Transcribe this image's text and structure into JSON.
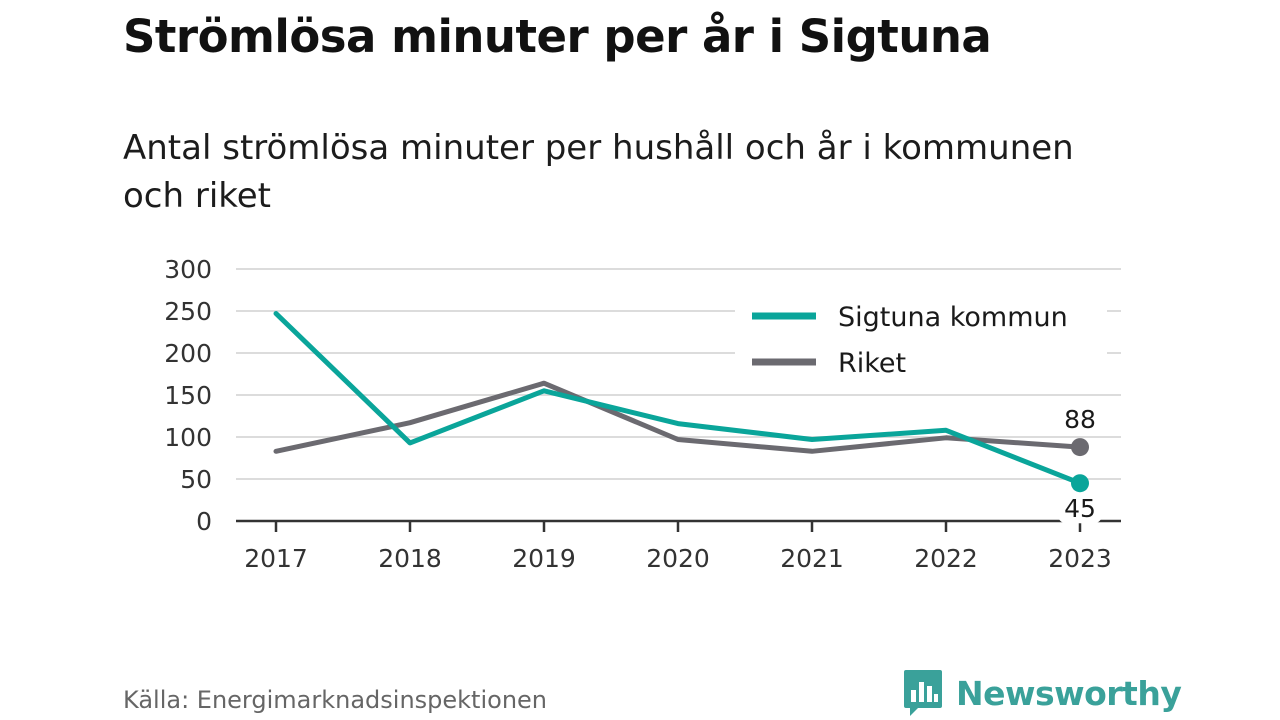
{
  "chart_data": {
    "type": "line",
    "title": "Strömlösa minuter per år i Sigtuna",
    "subtitle": "Antal strömlösa minuter per hushåll och år i kommunen och riket",
    "categories": [
      "2017",
      "2018",
      "2019",
      "2020",
      "2021",
      "2022",
      "2023"
    ],
    "series": [
      {
        "name": "Sigtuna kommun",
        "color": "#0aa59a",
        "values": [
          247,
          93,
          155,
          116,
          97,
          108,
          45
        ]
      },
      {
        "name": "Riket",
        "color": "#6b6a70",
        "values": [
          83,
          117,
          164,
          97,
          83,
          99,
          88
        ]
      }
    ],
    "end_labels": [
      "45",
      "88"
    ],
    "ylim": [
      0,
      300
    ],
    "yticks": [
      "0",
      "50",
      "100",
      "150",
      "200",
      "250",
      "300"
    ],
    "grid": true,
    "legend_position": "top-right"
  },
  "footer": {
    "source": "Källa: Energimarknadsinspektionen",
    "brand": "Newsworthy",
    "brand_icon": "bar-chart-speech-bubble-icon",
    "brand_color": "#3aa19a"
  }
}
